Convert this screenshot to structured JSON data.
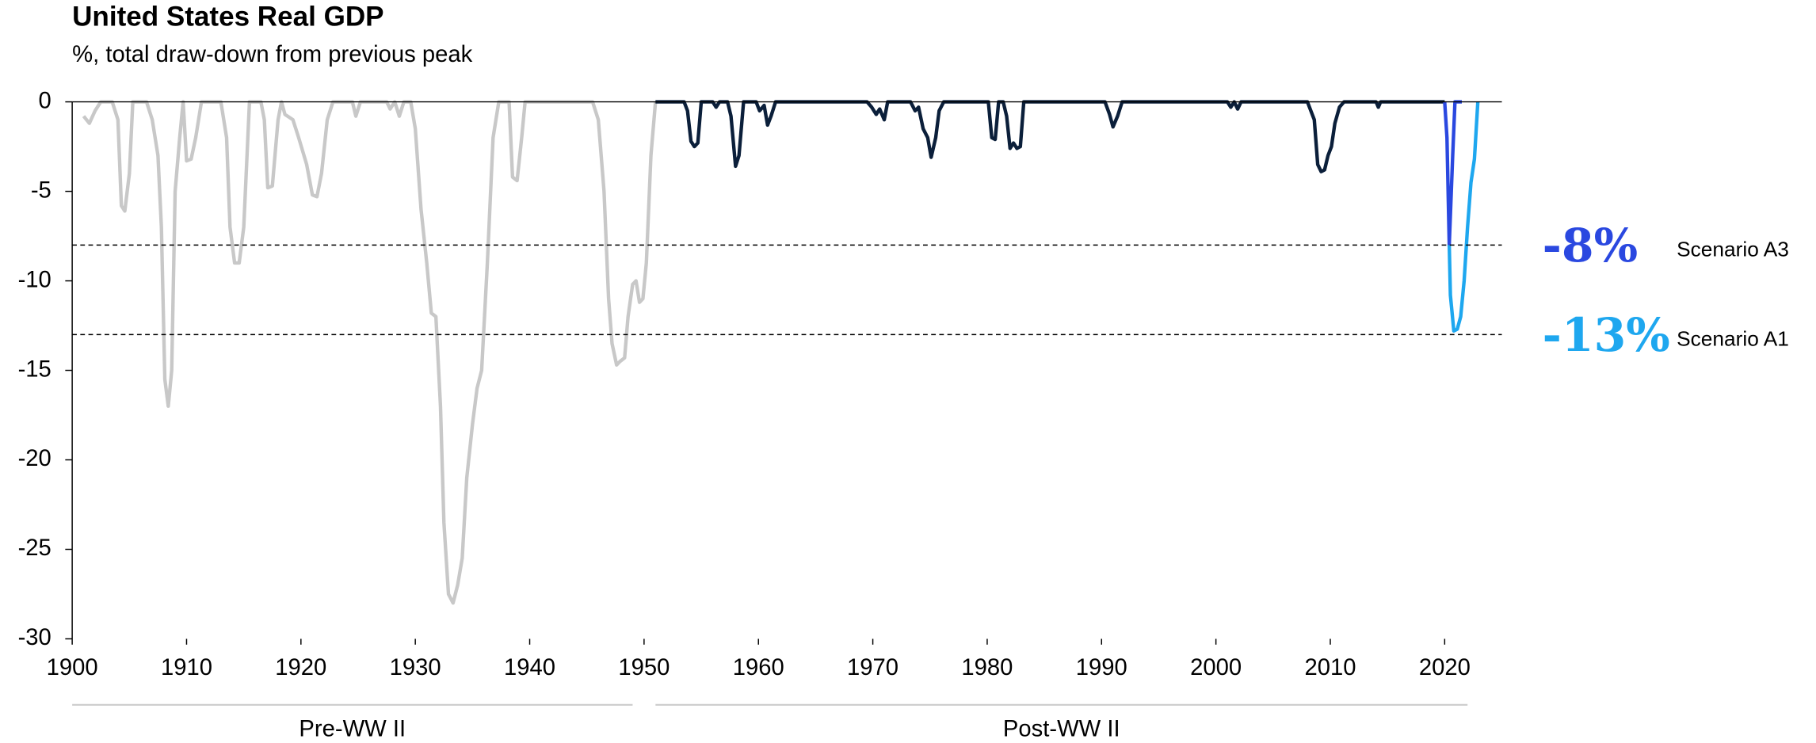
{
  "chart_data": {
    "type": "line",
    "title": "United States Real GDP",
    "subtitle": "%, total draw-down from previous peak",
    "xlim": [
      1900,
      2025
    ],
    "xticks": [
      1900,
      1910,
      1920,
      1930,
      1940,
      1950,
      1960,
      1970,
      1980,
      1990,
      2000,
      2010,
      2020
    ],
    "ylim": [
      -30,
      0
    ],
    "yticks": [
      0,
      -5,
      -10,
      -15,
      -20,
      -25,
      -30
    ],
    "periods": [
      {
        "label": "Pre-WW II",
        "start": 1900,
        "end": 1949
      },
      {
        "label": "Post-WW II",
        "start": 1951,
        "end": 2022
      }
    ],
    "series": [
      {
        "color": "#c8c8c8",
        "x": [
          1901,
          1901.5,
          1902,
          1902.5,
          1903.5,
          1904,
          1904.3,
          1904.6,
          1905,
          1905.3,
          1906.5,
          1907,
          1907.5,
          1907.8,
          1908.1,
          1908.4,
          1908.7,
          1909,
          1909.4,
          1909.7,
          1910,
          1910.4,
          1910.8,
          1911.3,
          1913,
          1913.5,
          1913.8,
          1914.2,
          1914.6,
          1915,
          1915.5,
          1916.5,
          1916.8,
          1917.1,
          1917.5,
          1918,
          1918.3,
          1918.6,
          1919.3,
          1919.8,
          1920.5,
          1921,
          1921.4,
          1921.8,
          1922.3,
          1922.8,
          1924.5,
          1924.8,
          1925.2,
          1927.5,
          1927.8,
          1928.2,
          1928.6,
          1929,
          1929.6,
          1930,
          1930.5,
          1931,
          1931.4,
          1931.8,
          1932.2,
          1932.5,
          1932.9,
          1933.3,
          1933.7,
          1934.1,
          1934.5,
          1935,
          1935.4,
          1935.8,
          1936.3,
          1936.8,
          1937.3,
          1938.2,
          1938.5,
          1938.9,
          1939.3,
          1939.6,
          1945.5,
          1946,
          1946.5,
          1946.9,
          1947.2,
          1947.6,
          1947.9,
          1948.3,
          1948.6,
          1949,
          1949.3,
          1949.6,
          1949.9,
          1950.2,
          1950.6,
          1951
        ],
        "values": [
          -0.8,
          -1.2,
          -0.5,
          0,
          0,
          -1,
          -5.8,
          -6.1,
          -4,
          0,
          0,
          -1,
          -3,
          -7,
          -15.5,
          -17,
          -15,
          -5,
          -2,
          0,
          -3.3,
          -3.2,
          -2,
          0,
          0,
          -2,
          -7,
          -9,
          -9,
          -7,
          0,
          0,
          -1,
          -4.8,
          -4.7,
          -1,
          0,
          -0.7,
          -1,
          -2,
          -3.5,
          -5.2,
          -5.3,
          -4,
          -1,
          0,
          0,
          -0.8,
          0,
          0,
          -0.4,
          0,
          -0.8,
          0,
          0,
          -1.5,
          -6,
          -9,
          -11.8,
          -12,
          -17,
          -23.5,
          -27.5,
          -28,
          -27,
          -25.5,
          -21,
          -18,
          -16,
          -15,
          -9,
          -2,
          0,
          0,
          -4.2,
          -4.4,
          -2,
          0,
          0,
          -1,
          -5,
          -11,
          -13.5,
          -14.7,
          -14.5,
          -14.3,
          -12,
          -10.2,
          -10,
          -11.2,
          -11,
          -9,
          -3,
          0
        ]
      },
      {
        "color": "#0b1f3a",
        "x": [
          1951,
          1953.5,
          1953.8,
          1954.1,
          1954.4,
          1954.7,
          1955,
          1956,
          1956.3,
          1956.6,
          1957.3,
          1957.6,
          1958,
          1958.3,
          1958.7,
          1959.8,
          1960.1,
          1960.5,
          1960.8,
          1961.1,
          1961.5,
          1969.5,
          1969.9,
          1970.3,
          1970.6,
          1971,
          1971.3,
          1973.3,
          1973.7,
          1974,
          1974.4,
          1974.8,
          1975.1,
          1975.5,
          1975.8,
          1976.2,
          1980.1,
          1980.4,
          1980.7,
          1981,
          1981.4,
          1981.7,
          1982,
          1982.3,
          1982.6,
          1982.9,
          1983.2,
          1990.3,
          1990.7,
          1991,
          1991.4,
          1991.8,
          2001,
          2001.3,
          2001.6,
          2001.9,
          2002.2,
          2008,
          2008.3,
          2008.6,
          2008.9,
          2009.2,
          2009.5,
          2009.8,
          2010.1,
          2010.4,
          2010.8,
          2011.2,
          2014,
          2014.2,
          2014.4,
          2020
        ],
        "values": [
          0,
          0,
          -0.5,
          -2.2,
          -2.5,
          -2.3,
          0,
          0,
          -0.3,
          0,
          0,
          -0.8,
          -3.6,
          -3,
          0,
          0,
          -0.5,
          -0.2,
          -1.3,
          -0.8,
          0,
          0,
          -0.3,
          -0.7,
          -0.4,
          -1,
          0,
          0,
          -0.5,
          -0.3,
          -1.5,
          -2,
          -3.1,
          -2,
          -0.5,
          0,
          0,
          -2,
          -2.1,
          0,
          0,
          -0.8,
          -2.6,
          -2.3,
          -2.6,
          -2.5,
          0,
          0,
          -0.7,
          -1.4,
          -0.8,
          0,
          0,
          -0.3,
          0,
          -0.4,
          0,
          0,
          -0.5,
          -1,
          -3.5,
          -3.9,
          -3.8,
          -3,
          -2.5,
          -1.2,
          -0.3,
          0,
          0,
          -0.3,
          0,
          0
        ]
      },
      {
        "name": "Scenario A3",
        "color": "#2a48e0",
        "trough": -8,
        "trough_label": "-8%",
        "x": [
          2020,
          2020.2,
          2020.4,
          2020.7,
          2020.9,
          2021.5
        ],
        "values": [
          0,
          -2,
          -8,
          -3,
          0,
          0
        ]
      },
      {
        "name": "Scenario A1",
        "color": "#1ea7ef",
        "trough": -13,
        "trough_label": "-13%",
        "x": [
          2020.4,
          2020.5,
          2020.8,
          2021.1,
          2021.4,
          2021.7,
          2022,
          2022.3,
          2022.6,
          2022.9
        ],
        "values": [
          -8,
          -10.8,
          -12.8,
          -12.7,
          -12,
          -10,
          -7,
          -4.5,
          -3.2,
          0
        ]
      }
    ]
  }
}
